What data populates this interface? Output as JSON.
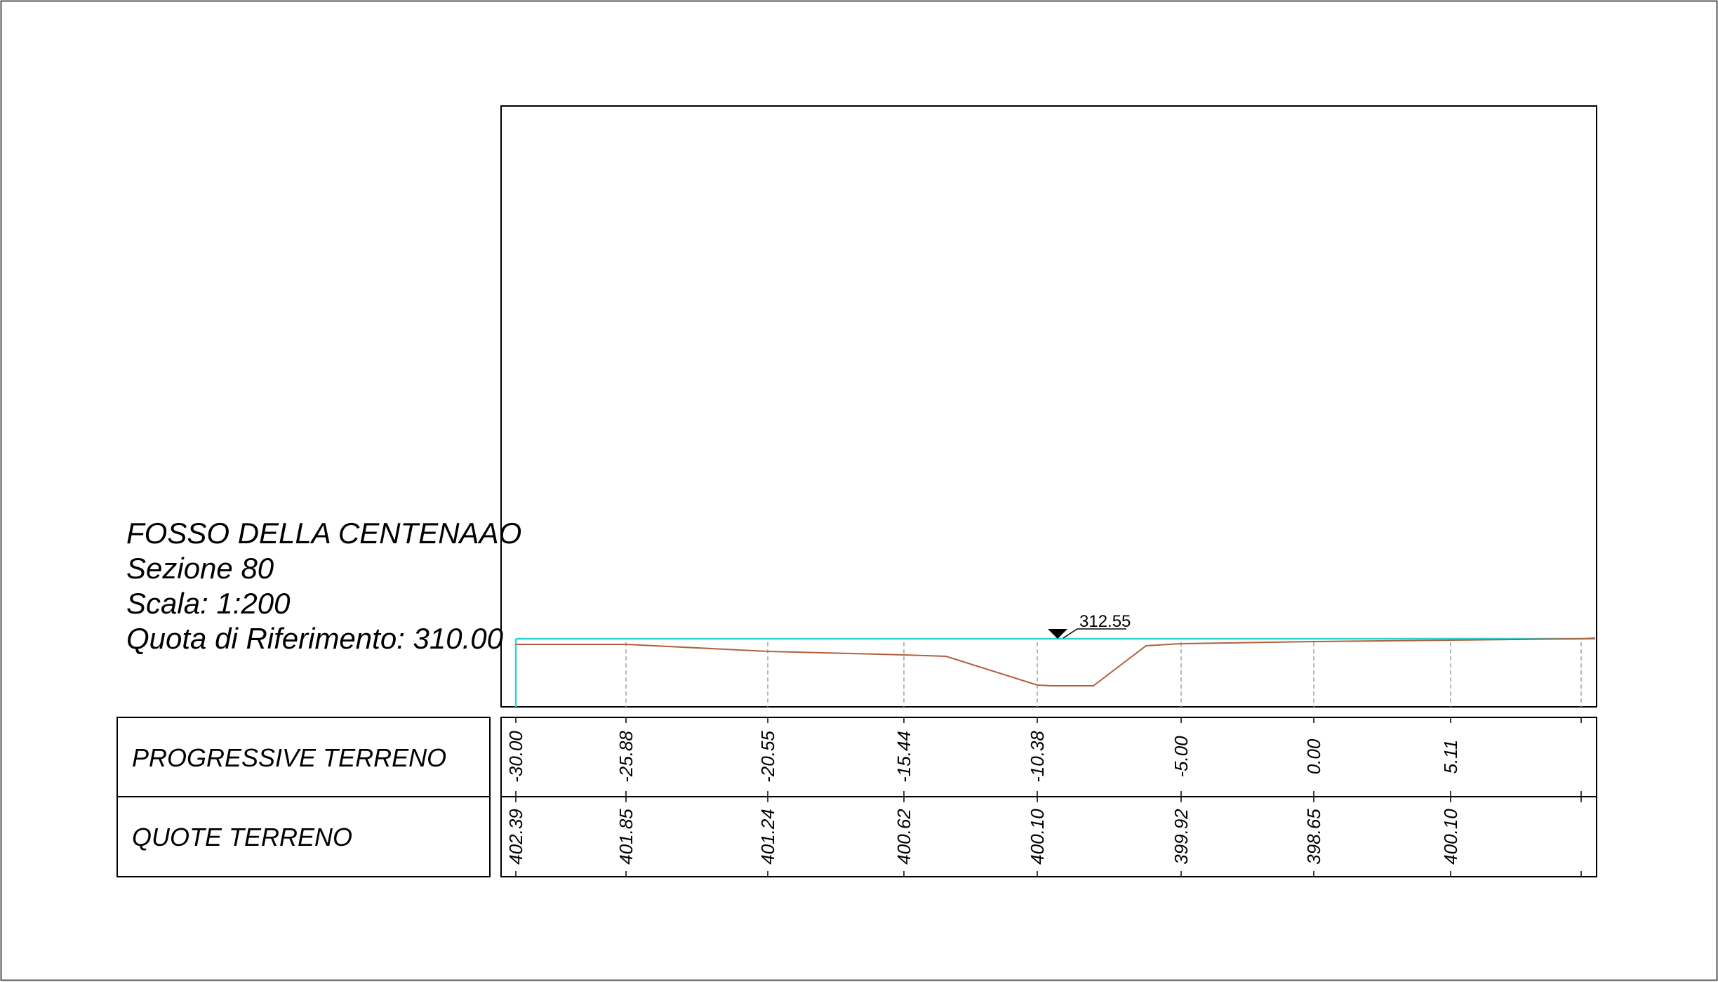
{
  "title_block": {
    "line1": "FOSSO DELLA CENTENAAO",
    "line2": "Sezione 80",
    "line3": "Scala: 1:200",
    "line4": "Quota di Riferimento: 310.00"
  },
  "water_level": {
    "label": "312.55",
    "elevation": 312.55
  },
  "table": {
    "row1_header": "PROGRESSIVE TERRENO",
    "row2_header": "QUOTE TERRENO",
    "stations": [
      {
        "progressive": "-30.00",
        "quota": "402.39"
      },
      {
        "progressive": "-25.88",
        "quota": "401.85"
      },
      {
        "progressive": "-20.55",
        "quota": "401.24"
      },
      {
        "progressive": "-15.44",
        "quota": "400.62"
      },
      {
        "progressive": "-10.38",
        "quota": "400.10"
      },
      {
        "progressive": "-5.00",
        "quota": "399.92"
      },
      {
        "progressive": "0.00",
        "quota": "398.65"
      },
      {
        "progressive": "5.11",
        "quota": "400.10"
      }
    ]
  },
  "colors": {
    "terrain": "#b0603c",
    "water": "#2ed3d3",
    "frame": "#000000",
    "station_guides": "#a0a0a0"
  }
}
